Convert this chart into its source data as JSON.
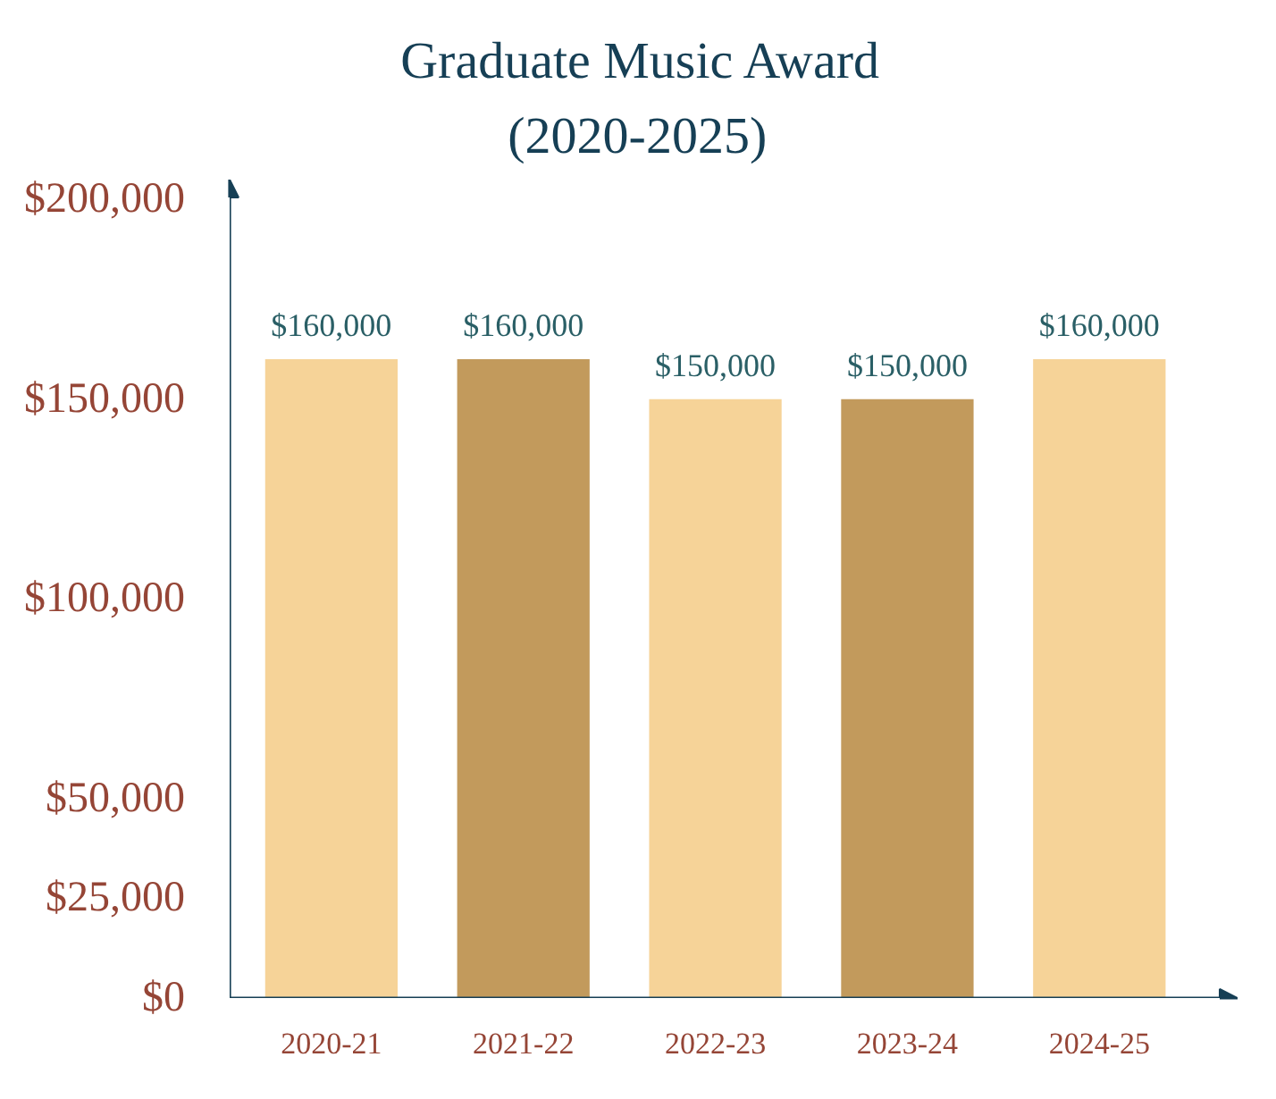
{
  "chart_data": {
    "type": "bar",
    "title": "Graduate Music Award",
    "subtitle": "(2020-2025)",
    "categories": [
      "2020-21",
      "2021-22",
      "2022-23",
      "2023-24",
      "2024-25"
    ],
    "values": [
      160000,
      160000,
      150000,
      150000,
      160000
    ],
    "colors": [
      "#f6d398",
      "#c29a5c",
      "#f6d398",
      "#c29a5c",
      "#f6d398"
    ],
    "value_labels": [
      "$160,000",
      "$160,000",
      "$150,000",
      "$150,000",
      "$160,000"
    ],
    "ylim": [
      0,
      205000
    ],
    "yticks": [
      {
        "value": 0,
        "label": "$0"
      },
      {
        "value": 25000,
        "label": "$25,000"
      },
      {
        "value": 50000,
        "label": "$50,000"
      },
      {
        "value": 100000,
        "label": "$100,000"
      },
      {
        "value": 150000,
        "label": "$150,000"
      },
      {
        "value": 200000,
        "label": "$200,000"
      }
    ]
  }
}
